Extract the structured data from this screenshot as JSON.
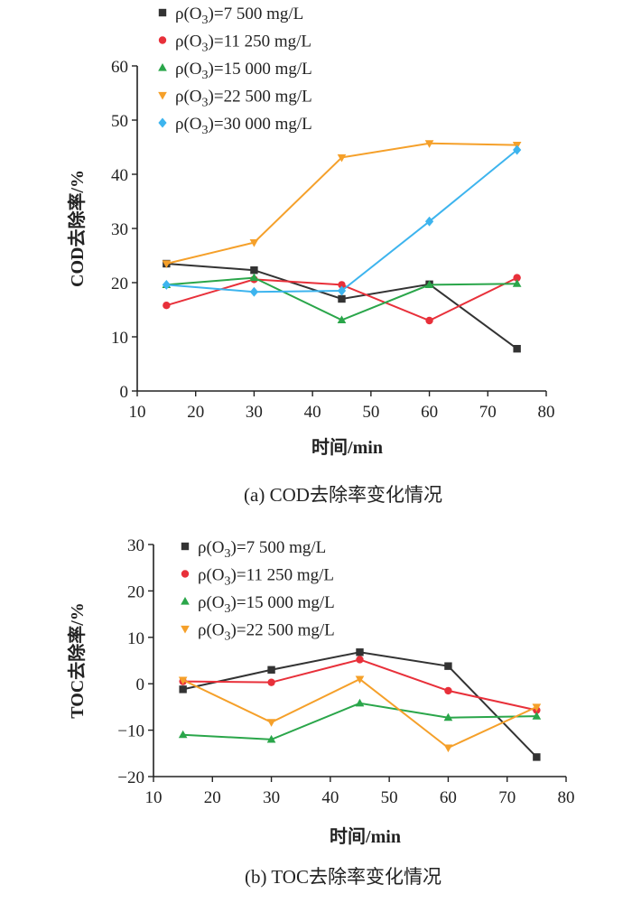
{
  "chart_data": [
    {
      "type": "line",
      "caption": "(a) COD去除率变化情况",
      "xlabel": "时间/min",
      "ylabel": "COD去除率/%",
      "xlim": [
        10,
        80
      ],
      "ylim": [
        0,
        60
      ],
      "xticks": [
        10,
        20,
        30,
        40,
        50,
        60,
        70,
        80
      ],
      "yticks": [
        0,
        10,
        20,
        30,
        40,
        50,
        60
      ],
      "grid": false,
      "legend_position": "top-left",
      "x": [
        15,
        30,
        45,
        60,
        75
      ],
      "series": [
        {
          "prefix": "ρ(O",
          "sub": "3",
          "suffix": ")=7 500 mg/L",
          "color": "#333333",
          "marker": "square",
          "values": [
            23.5,
            22.3,
            17.0,
            19.7,
            7.8
          ]
        },
        {
          "prefix": "ρ(O",
          "sub": "3",
          "suffix": ")=11 250 mg/L",
          "color": "#e8303a",
          "marker": "circle",
          "values": [
            15.8,
            20.6,
            19.6,
            13.0,
            20.9
          ]
        },
        {
          "prefix": "ρ(O",
          "sub": "3",
          "suffix": ")=15 000 mg/L",
          "color": "#2aa64a",
          "marker": "triangle-up",
          "values": [
            19.6,
            20.9,
            13.1,
            19.6,
            19.8
          ]
        },
        {
          "prefix": "ρ(O",
          "sub": "3",
          "suffix": ")=22 500 mg/L",
          "color": "#f5a02a",
          "marker": "triangle-down",
          "values": [
            23.5,
            27.4,
            43.1,
            45.7,
            45.4
          ]
        },
        {
          "prefix": "ρ(O",
          "sub": "3",
          "suffix": ")=30 000 mg/L",
          "color": "#3db4ee",
          "marker": "diamond",
          "values": [
            19.6,
            18.3,
            18.5,
            31.3,
            44.5
          ]
        }
      ]
    },
    {
      "type": "line",
      "caption": "(b) TOC去除率变化情况",
      "xlabel": "时间/min",
      "ylabel": "TOC去除率/%",
      "xlim": [
        10,
        80
      ],
      "ylim": [
        -20,
        30
      ],
      "xticks": [
        10,
        20,
        30,
        40,
        50,
        60,
        70,
        80
      ],
      "yticks": [
        -20,
        -10,
        0,
        10,
        20,
        30
      ],
      "grid": false,
      "legend_position": "top-left",
      "x": [
        15,
        30,
        45,
        60,
        75
      ],
      "series": [
        {
          "prefix": "ρ(O",
          "sub": "3",
          "suffix": ")=7 500 mg/L",
          "color": "#333333",
          "marker": "square",
          "values": [
            -1.2,
            3.0,
            6.8,
            3.8,
            -15.8
          ]
        },
        {
          "prefix": "ρ(O",
          "sub": "3",
          "suffix": ")=11 250 mg/L",
          "color": "#e8303a",
          "marker": "circle",
          "values": [
            0.5,
            0.3,
            5.2,
            -1.5,
            -5.7
          ]
        },
        {
          "prefix": "ρ(O",
          "sub": "3",
          "suffix": ")=15 000 mg/L",
          "color": "#2aa64a",
          "marker": "triangle-up",
          "values": [
            -11.0,
            -12.0,
            -4.2,
            -7.3,
            -7.0
          ]
        },
        {
          "prefix": "ρ(O",
          "sub": "3",
          "suffix": ")=22 500 mg/L",
          "color": "#f5a02a",
          "marker": "triangle-down",
          "values": [
            0.8,
            -8.3,
            1.0,
            -13.8,
            -5.0
          ]
        }
      ]
    }
  ]
}
